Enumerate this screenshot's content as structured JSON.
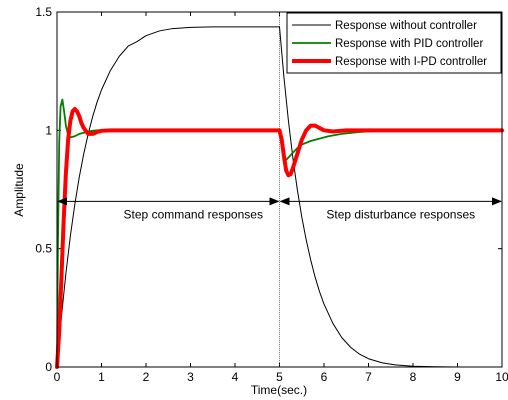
{
  "chart_data": {
    "type": "line",
    "xlabel": "Time(sec.)",
    "ylabel": "Amplitude",
    "xlim": [
      0,
      10
    ],
    "ylim": [
      0,
      1.5
    ],
    "x_ticks": [
      "0",
      "1",
      "2",
      "3",
      "4",
      "5",
      "6",
      "7",
      "8",
      "9",
      "10"
    ],
    "y_ticks": [
      "0",
      "0.5",
      "1",
      "1.5"
    ],
    "grid": false,
    "legend_position": "top-right",
    "series": [
      {
        "name": "Response without controller",
        "color": "#000000",
        "style": "thin",
        "x": [
          0,
          0.1,
          0.2,
          0.3,
          0.4,
          0.5,
          0.6,
          0.7,
          0.8,
          0.9,
          1.0,
          1.2,
          1.4,
          1.6,
          1.8,
          2.0,
          2.3,
          2.6,
          3.0,
          3.5,
          4.0,
          4.5,
          4.99,
          5.0,
          5.1,
          5.2,
          5.3,
          5.4,
          5.5,
          5.6,
          5.7,
          5.8,
          5.9,
          6.0,
          6.2,
          6.4,
          6.6,
          6.8,
          7.0,
          7.3,
          7.6,
          8.0,
          8.5,
          9.0,
          10.0
        ],
        "values": [
          0,
          0.213,
          0.396,
          0.553,
          0.687,
          0.802,
          0.9,
          0.984,
          1.057,
          1.119,
          1.171,
          1.253,
          1.313,
          1.356,
          1.375,
          1.4,
          1.42,
          1.43,
          1.435,
          1.437,
          1.437,
          1.437,
          1.437,
          1.437,
          1.224,
          1.041,
          0.884,
          0.75,
          0.635,
          0.537,
          0.453,
          0.38,
          0.318,
          0.266,
          0.184,
          0.124,
          0.083,
          0.054,
          0.035,
          0.018,
          0.009,
          0.003,
          0.001,
          0.0,
          0.0
        ]
      },
      {
        "name": "Response with PID controller",
        "color": "#008000",
        "style": "medium",
        "x": [
          0,
          0.02,
          0.05,
          0.08,
          0.12,
          0.16,
          0.2,
          0.25,
          0.3,
          0.4,
          0.5,
          0.6,
          0.7,
          0.8,
          0.9,
          1.0,
          1.2,
          1.5,
          2.0,
          3.0,
          4.0,
          4.99,
          5.0,
          5.05,
          5.1,
          5.15,
          5.2,
          5.3,
          5.4,
          5.5,
          5.7,
          5.9,
          6.1,
          6.4,
          6.8,
          7.2,
          8.0,
          9.0,
          10.0
        ],
        "values": [
          0,
          0.5,
          0.95,
          1.1,
          1.13,
          1.08,
          1.02,
          0.98,
          0.97,
          0.975,
          0.985,
          0.99,
          0.995,
          0.998,
          1.0,
          1.0,
          1.0,
          1.0,
          1.0,
          1.0,
          1.0,
          1.0,
          1.0,
          0.93,
          0.88,
          0.875,
          0.885,
          0.905,
          0.925,
          0.94,
          0.955,
          0.965,
          0.975,
          0.985,
          0.993,
          0.998,
          1.0,
          1.0,
          1.0
        ]
      },
      {
        "name": "Response with I-PD controller",
        "color": "#ff0000",
        "style": "thick",
        "x": [
          0,
          0.05,
          0.1,
          0.15,
          0.2,
          0.25,
          0.3,
          0.35,
          0.4,
          0.45,
          0.5,
          0.55,
          0.6,
          0.7,
          0.8,
          0.9,
          1.0,
          1.2,
          1.5,
          2.0,
          3.0,
          4.0,
          4.99,
          5.0,
          5.05,
          5.1,
          5.15,
          5.2,
          5.25,
          5.3,
          5.4,
          5.5,
          5.6,
          5.7,
          5.8,
          5.9,
          6.0,
          6.2,
          6.5,
          7.0,
          8.0,
          9.0,
          10.0
        ],
        "values": [
          0,
          0.15,
          0.38,
          0.62,
          0.82,
          0.96,
          1.04,
          1.08,
          1.09,
          1.08,
          1.06,
          1.03,
          1.01,
          0.985,
          0.985,
          0.993,
          0.998,
          1.0,
          1.0,
          1.0,
          1.0,
          1.0,
          1.0,
          1.0,
          0.96,
          0.89,
          0.83,
          0.81,
          0.815,
          0.84,
          0.9,
          0.96,
          1.0,
          1.02,
          1.02,
          1.01,
          1.0,
          0.995,
          1.0,
          1.0,
          1.0,
          1.0,
          1.0
        ]
      }
    ],
    "vertical_line_x": 5,
    "annotations": [
      {
        "text": "Step command responses",
        "from_x": 0,
        "to_x": 5,
        "y": 0.7
      },
      {
        "text": "Step disturbance responses",
        "from_x": 5,
        "to_x": 10,
        "y": 0.7
      }
    ]
  }
}
